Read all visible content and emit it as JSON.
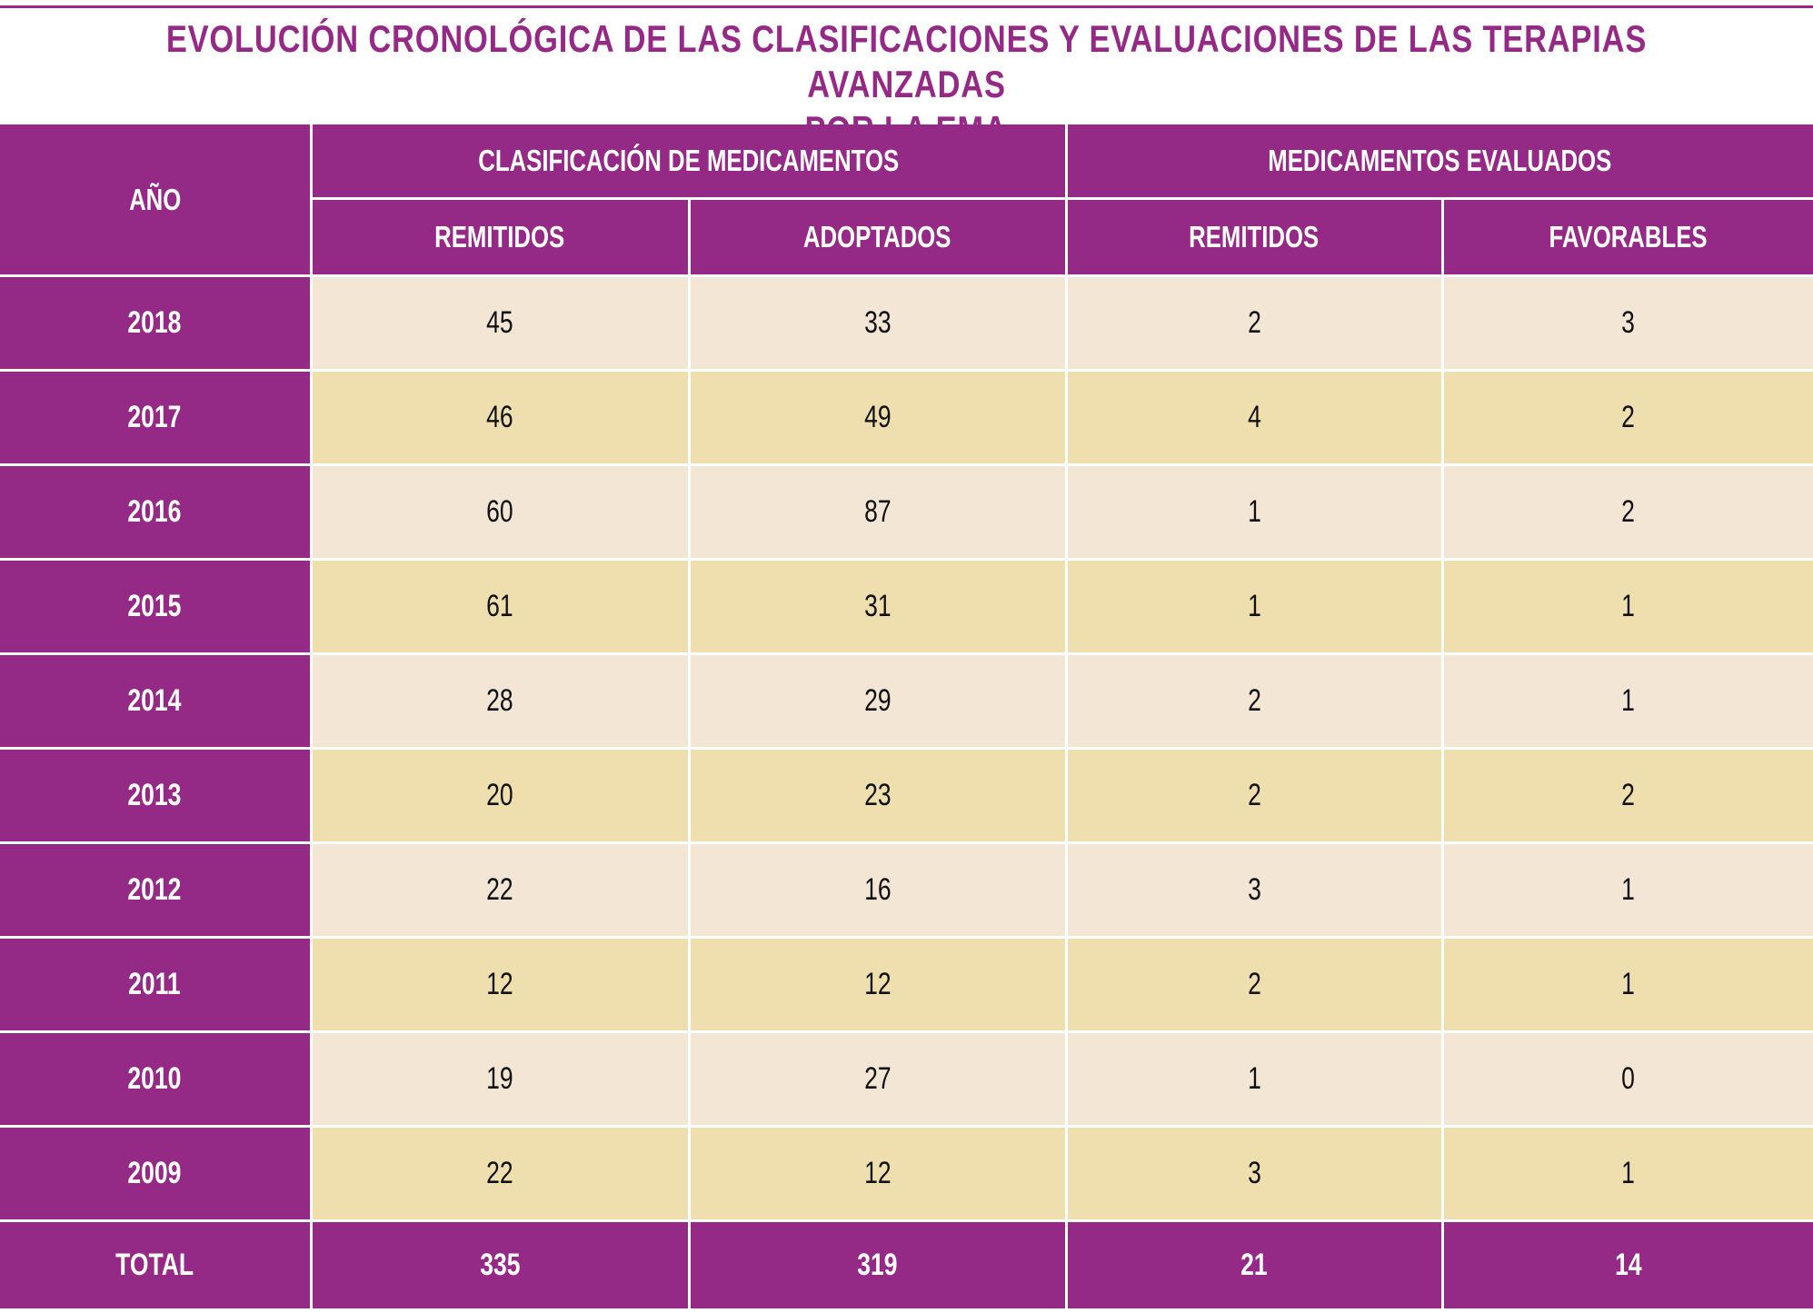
{
  "title": {
    "line1": "EVOLUCIÓN CRONOLÓGICA DE LAS CLASIFICACIONES Y EVALUACIONES DE LAS TERAPIAS AVANZADAS",
    "line2": "POR LA EMA"
  },
  "colors": {
    "accent": "#952a86",
    "row_light": "#f4e6d5",
    "row_dark": "#efdfae"
  },
  "headers": {
    "year": "AÑO",
    "group1": "CLASIFICACIÓN DE MEDICAMENTOS",
    "group2": "MEDICAMENTOS EVALUADOS",
    "cols": [
      "REMITIDOS",
      "ADOPTADOS",
      "REMITIDOS",
      "FAVORABLES"
    ]
  },
  "rows": [
    {
      "year": "2018",
      "values": [
        "45",
        "33",
        "2",
        "3"
      ]
    },
    {
      "year": "2017",
      "values": [
        "46",
        "49",
        "4",
        "2"
      ]
    },
    {
      "year": "2016",
      "values": [
        "60",
        "87",
        "1",
        "2"
      ]
    },
    {
      "year": "2015",
      "values": [
        "61",
        "31",
        "1",
        "1"
      ]
    },
    {
      "year": "2014",
      "values": [
        "28",
        "29",
        "2",
        "1"
      ]
    },
    {
      "year": "2013",
      "values": [
        "20",
        "23",
        "2",
        "2"
      ]
    },
    {
      "year": "2012",
      "values": [
        "22",
        "16",
        "3",
        "1"
      ]
    },
    {
      "year": "2011",
      "values": [
        "12",
        "12",
        "2",
        "1"
      ]
    },
    {
      "year": "2010",
      "values": [
        "19",
        "27",
        "1",
        "0"
      ]
    },
    {
      "year": "2009",
      "values": [
        "22",
        "12",
        "3",
        "1"
      ]
    }
  ],
  "total": {
    "label": "TOTAL",
    "values": [
      "335",
      "319",
      "21",
      "14"
    ]
  }
}
